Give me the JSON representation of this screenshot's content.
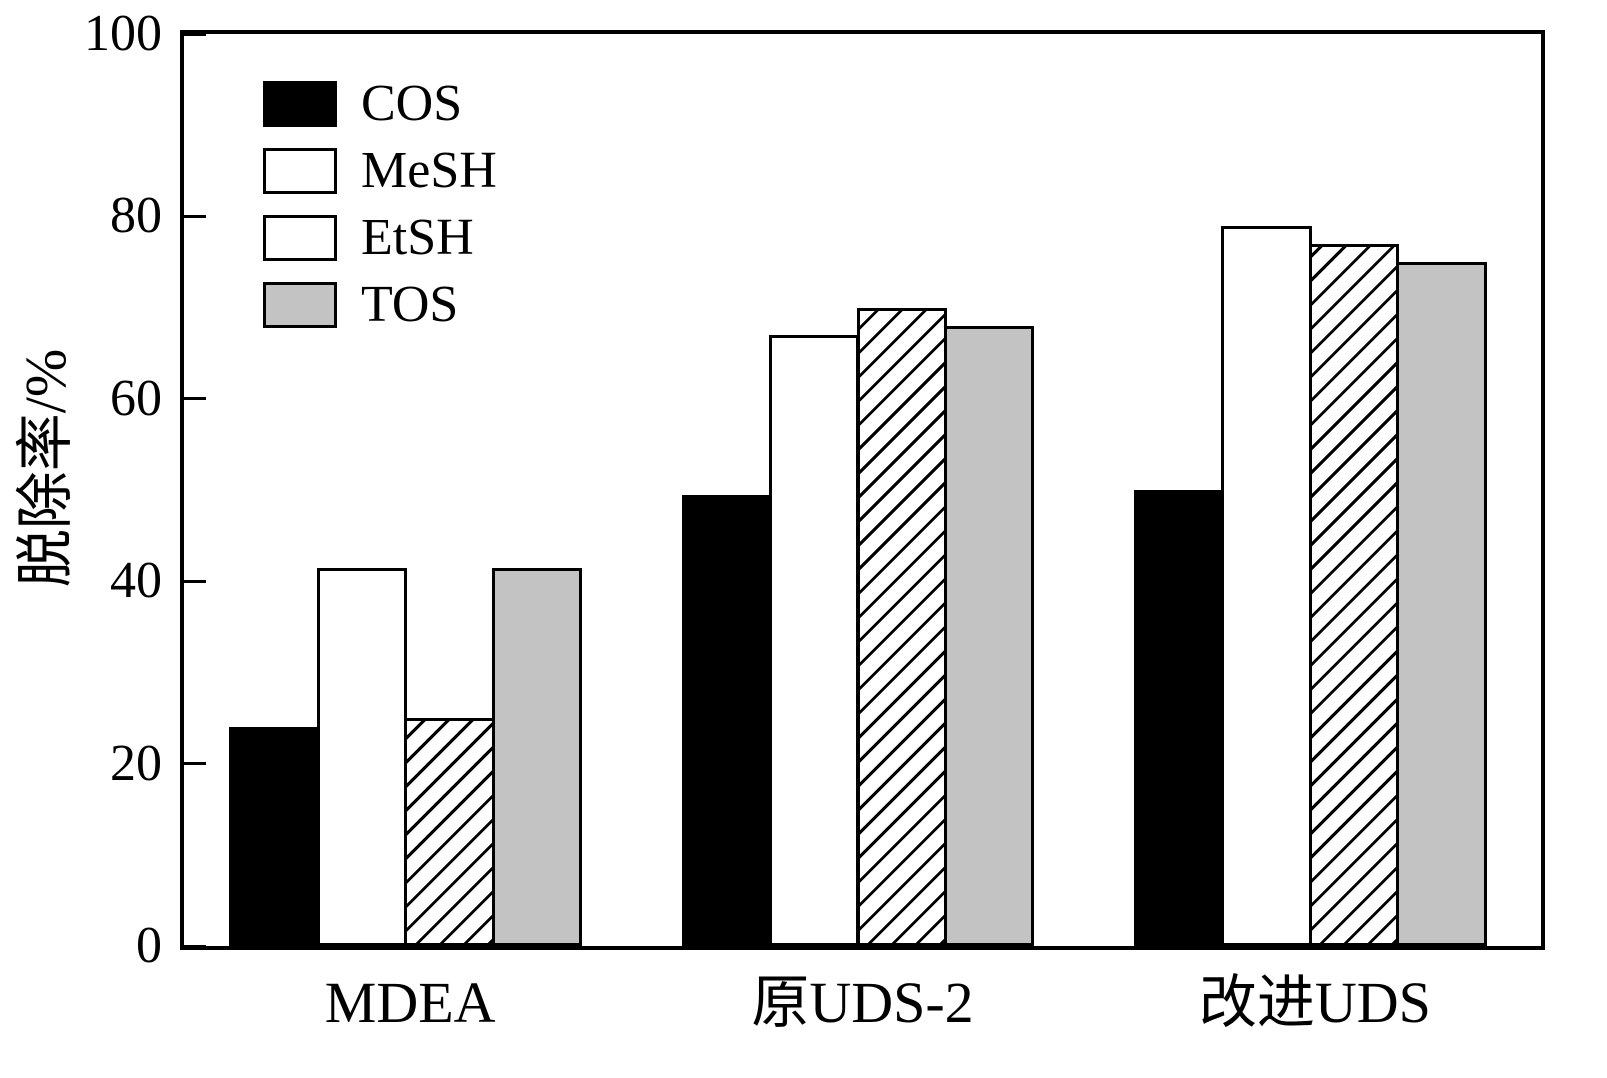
{
  "chart_data": {
    "type": "bar",
    "title": "",
    "xlabel": "",
    "ylabel": "脱除率/%",
    "ylim": [
      0,
      100
    ],
    "yticks": [
      0,
      20,
      40,
      60,
      80,
      100
    ],
    "grid": false,
    "legend_position": "top-left",
    "categories": [
      "MDEA",
      "原UDS-2",
      "改进UDS"
    ],
    "series": [
      {
        "name": "COS",
        "pattern": "solid",
        "color": "#000000",
        "values": [
          24,
          49.5,
          50
        ]
      },
      {
        "name": "MeSH",
        "pattern": "solid",
        "color": "#ffffff",
        "values": [
          41.5,
          67,
          79
        ]
      },
      {
        "name": "EtSH",
        "pattern": "diagonal-hatch",
        "color": "#ffffff",
        "values": [
          25,
          70,
          77
        ]
      },
      {
        "name": "TOS",
        "pattern": "solid",
        "color": "#c3c3c3",
        "values": [
          41.5,
          68,
          75
        ]
      }
    ]
  }
}
